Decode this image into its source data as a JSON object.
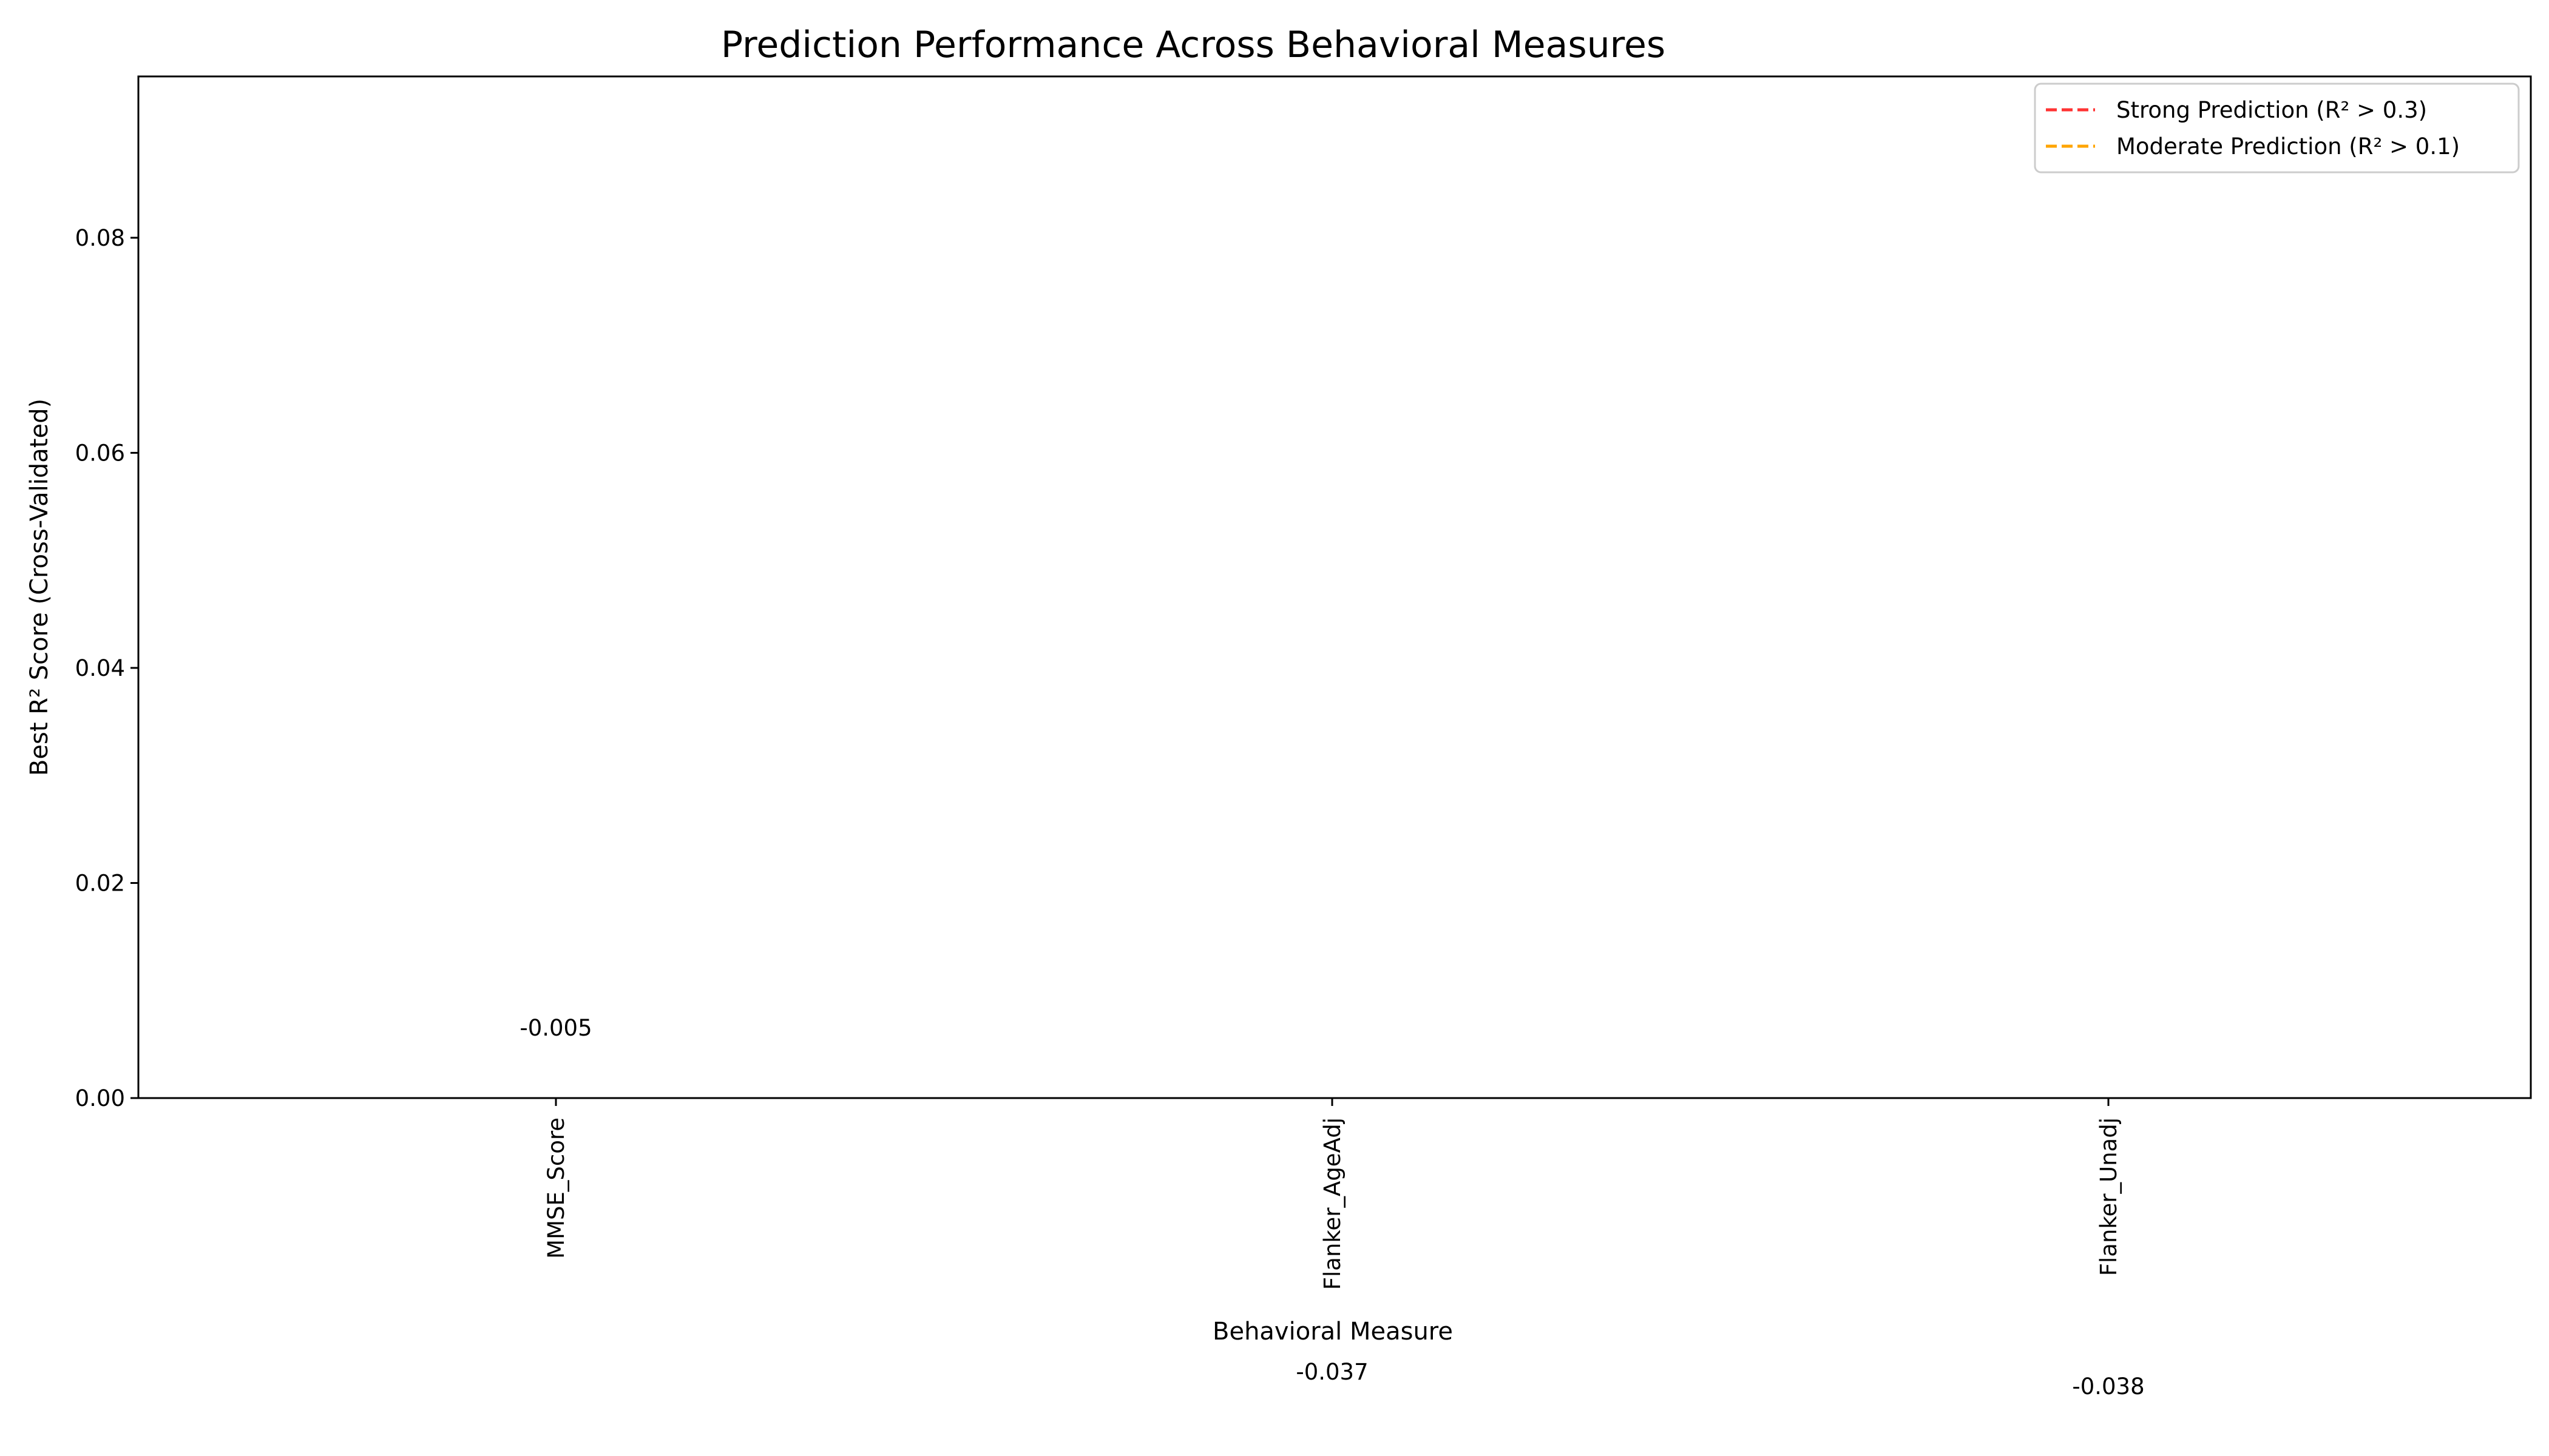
{
  "chart_data": {
    "type": "bar",
    "title": "Prediction Performance Across Behavioral Measures",
    "xlabel": "Behavioral Measure",
    "ylabel": "Best R² Score (Cross-Validated)",
    "categories": [
      "MMSE_Score",
      "Flanker_AgeAdj",
      "Flanker_Unadj"
    ],
    "values": [
      -0.005,
      -0.037,
      -0.038
    ],
    "value_labels": [
      "-0.005",
      "-0.037",
      "-0.038"
    ],
    "ylim": [
      0,
      0.095
    ],
    "yticks": [
      0,
      0.02,
      0.04,
      0.06,
      0.08
    ],
    "ytick_labels": [
      "0.00",
      "0.02",
      "0.04",
      "0.06",
      "0.08"
    ],
    "grid": false,
    "legend_position": "top-right",
    "legend": [
      {
        "label": "Strong Prediction (R² > 0.3)",
        "color": "#ff3333",
        "style": "dashed",
        "threshold": 0.3
      },
      {
        "label": "Moderate Prediction (R² > 0.1)",
        "color": "#ffa500",
        "style": "dashed",
        "threshold": 0.1
      }
    ],
    "bar_color": "#1f77b4"
  }
}
